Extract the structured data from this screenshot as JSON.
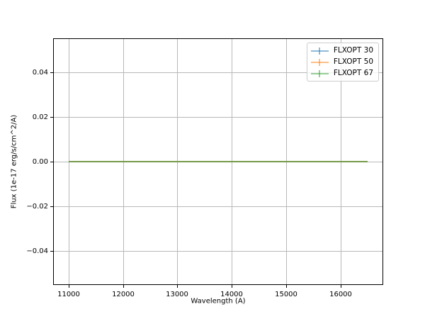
{
  "figure": {
    "background": "#ffffff"
  },
  "chart_data": {
    "type": "line",
    "subtype": "errorbar",
    "title": "",
    "xlabel": "Wavelength (A)",
    "ylabel": "Flux (1e-17 erg/s/cm^2/A)",
    "xlim": [
      10725,
      16775
    ],
    "ylim": [
      -0.055,
      0.055
    ],
    "xticks": [
      11000,
      12000,
      13000,
      14000,
      15000,
      16000
    ],
    "xtick_labels": [
      "11000",
      "12000",
      "13000",
      "14000",
      "15000",
      "16000"
    ],
    "yticks": [
      0.04,
      0.02,
      0.0,
      -0.02,
      -0.04
    ],
    "ytick_labels": [
      "0.04",
      "0.02",
      "0.00",
      "−0.02",
      "−0.04"
    ],
    "grid": true,
    "grid_color": "#b8b8b8",
    "spine_color": "#000000",
    "legend_position": "upper right",
    "x_range": [
      11000,
      16500
    ],
    "series": [
      {
        "name": "FLXOPT 30",
        "color": "#1f77b4",
        "alpha": 0.5,
        "x_start": 11000,
        "x_end": 16500,
        "y_constant": 0
      },
      {
        "name": "FLXOPT 50",
        "color": "#ff7f0e",
        "alpha": 0.5,
        "x_start": 11000,
        "x_end": 16500,
        "y_constant": 0
      },
      {
        "name": "FLXOPT 67",
        "color": "#2ca02c",
        "alpha": 0.5,
        "x_start": 11000,
        "x_end": 16500,
        "y_constant": 0
      }
    ]
  }
}
